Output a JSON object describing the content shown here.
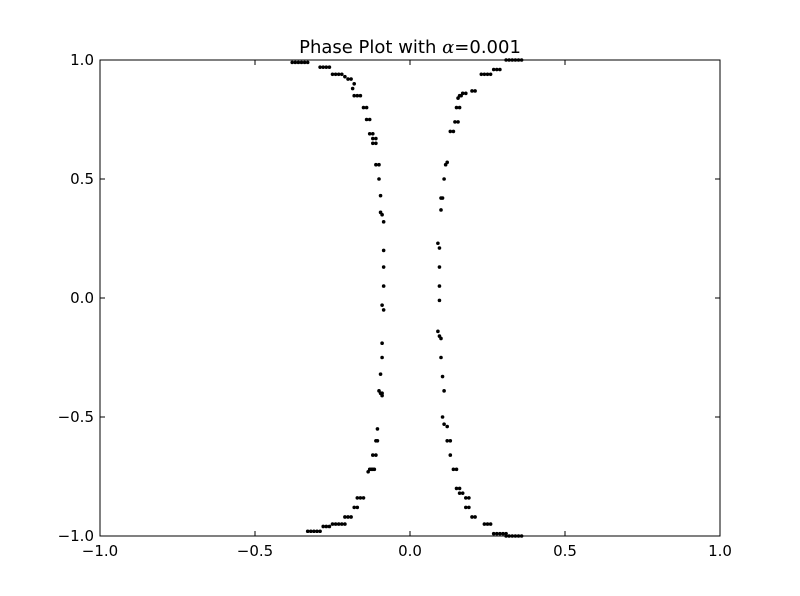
{
  "chart_data": {
    "type": "scatter",
    "title": {
      "prefix": "Phase Plot with ",
      "variable": "α",
      "suffix": "=0.001"
    },
    "xlabel": "",
    "ylabel": "",
    "xlim": [
      -1.0,
      1.0
    ],
    "ylim": [
      -1.0,
      1.0
    ],
    "grid": false,
    "legend": "none",
    "marker_color": "#000000",
    "x_ticks": [
      {
        "value": -1.0,
        "label": "−1.0"
      },
      {
        "value": -0.5,
        "label": "−0.5"
      },
      {
        "value": 0.0,
        "label": "0.0"
      },
      {
        "value": 0.5,
        "label": "0.5"
      },
      {
        "value": 1.0,
        "label": "1.0"
      }
    ],
    "y_ticks": [
      {
        "value": 1.0,
        "label": "1.0"
      },
      {
        "value": 0.5,
        "label": "0.5"
      },
      {
        "value": 0.0,
        "label": "0.0"
      },
      {
        "value": -0.5,
        "label": "−0.5"
      },
      {
        "value": -1.0,
        "label": "−1.0"
      }
    ],
    "series": [
      {
        "points": [
          [
            -0.38,
            0.99
          ],
          [
            -0.37,
            0.99
          ],
          [
            -0.36,
            0.99
          ],
          [
            -0.35,
            0.99
          ],
          [
            -0.34,
            0.99
          ],
          [
            -0.33,
            0.99
          ],
          [
            -0.29,
            0.97
          ],
          [
            -0.28,
            0.97
          ],
          [
            -0.27,
            0.97
          ],
          [
            -0.26,
            0.97
          ],
          [
            -0.25,
            0.94
          ],
          [
            -0.24,
            0.94
          ],
          [
            -0.23,
            0.94
          ],
          [
            -0.22,
            0.94
          ],
          [
            -0.21,
            0.93
          ],
          [
            -0.2,
            0.92
          ],
          [
            -0.19,
            0.92
          ],
          [
            -0.18,
            0.9
          ],
          [
            -0.185,
            0.88
          ],
          [
            -0.18,
            0.85
          ],
          [
            -0.17,
            0.85
          ],
          [
            -0.16,
            0.85
          ],
          [
            -0.15,
            0.8
          ],
          [
            -0.14,
            0.8
          ],
          [
            -0.14,
            0.75
          ],
          [
            -0.13,
            0.75
          ],
          [
            -0.13,
            0.69
          ],
          [
            -0.12,
            0.69
          ],
          [
            -0.12,
            0.67
          ],
          [
            -0.11,
            0.67
          ],
          [
            -0.12,
            0.65
          ],
          [
            -0.11,
            0.65
          ],
          [
            -0.11,
            0.56
          ],
          [
            -0.1,
            0.56
          ],
          [
            -0.1,
            0.5
          ],
          [
            -0.095,
            0.43
          ],
          [
            -0.095,
            0.36
          ],
          [
            -0.09,
            0.35
          ],
          [
            -0.085,
            0.32
          ],
          [
            -0.085,
            0.2
          ],
          [
            -0.085,
            0.13
          ],
          [
            -0.085,
            0.05
          ],
          [
            -0.09,
            -0.03
          ],
          [
            -0.085,
            -0.05
          ],
          [
            -0.09,
            -0.19
          ],
          [
            -0.09,
            -0.25
          ],
          [
            -0.095,
            -0.32
          ],
          [
            -0.1,
            -0.39
          ],
          [
            -0.095,
            -0.4
          ],
          [
            -0.09,
            -0.4
          ],
          [
            -0.09,
            -0.41
          ],
          [
            -0.105,
            -0.55
          ],
          [
            -0.11,
            -0.6
          ],
          [
            -0.105,
            -0.6
          ],
          [
            -0.12,
            -0.66
          ],
          [
            -0.11,
            -0.66
          ],
          [
            -0.135,
            -0.73
          ],
          [
            -0.13,
            -0.72
          ],
          [
            -0.125,
            -0.72
          ],
          [
            -0.12,
            -0.72
          ],
          [
            -0.115,
            -0.72
          ],
          [
            -0.17,
            -0.84
          ],
          [
            -0.16,
            -0.84
          ],
          [
            -0.15,
            -0.84
          ],
          [
            -0.18,
            -0.88
          ],
          [
            -0.17,
            -0.88
          ],
          [
            -0.21,
            -0.92
          ],
          [
            -0.2,
            -0.92
          ],
          [
            -0.19,
            -0.92
          ],
          [
            -0.25,
            -0.95
          ],
          [
            -0.24,
            -0.95
          ],
          [
            -0.23,
            -0.95
          ],
          [
            -0.22,
            -0.95
          ],
          [
            -0.21,
            -0.95
          ],
          [
            -0.28,
            -0.96
          ],
          [
            -0.27,
            -0.96
          ],
          [
            -0.26,
            -0.96
          ],
          [
            -0.33,
            -0.98
          ],
          [
            -0.32,
            -0.98
          ],
          [
            -0.31,
            -0.98
          ],
          [
            -0.3,
            -0.98
          ],
          [
            -0.29,
            -0.98
          ],
          [
            0.36,
            1.0
          ],
          [
            0.35,
            1.0
          ],
          [
            0.34,
            1.0
          ],
          [
            0.33,
            1.0
          ],
          [
            0.32,
            1.0
          ],
          [
            0.31,
            1.0
          ],
          [
            0.29,
            0.96
          ],
          [
            0.28,
            0.96
          ],
          [
            0.27,
            0.96
          ],
          [
            0.26,
            0.94
          ],
          [
            0.25,
            0.94
          ],
          [
            0.24,
            0.94
          ],
          [
            0.23,
            0.94
          ],
          [
            0.21,
            0.87
          ],
          [
            0.2,
            0.87
          ],
          [
            0.18,
            0.86
          ],
          [
            0.17,
            0.86
          ],
          [
            0.165,
            0.85
          ],
          [
            0.16,
            0.85
          ],
          [
            0.155,
            0.84
          ],
          [
            0.16,
            0.8
          ],
          [
            0.15,
            0.8
          ],
          [
            0.155,
            0.74
          ],
          [
            0.145,
            0.74
          ],
          [
            0.14,
            0.7
          ],
          [
            0.13,
            0.7
          ],
          [
            0.12,
            0.57
          ],
          [
            0.115,
            0.56
          ],
          [
            0.11,
            0.5
          ],
          [
            0.105,
            0.42
          ],
          [
            0.1,
            0.42
          ],
          [
            0.1,
            0.37
          ],
          [
            0.09,
            0.23
          ],
          [
            0.095,
            0.21
          ],
          [
            0.095,
            0.13
          ],
          [
            0.095,
            0.05
          ],
          [
            0.095,
            -0.01
          ],
          [
            0.09,
            -0.14
          ],
          [
            0.095,
            -0.16
          ],
          [
            0.1,
            -0.17
          ],
          [
            0.1,
            -0.25
          ],
          [
            0.105,
            -0.33
          ],
          [
            0.11,
            -0.39
          ],
          [
            0.105,
            -0.5
          ],
          [
            0.11,
            -0.53
          ],
          [
            0.12,
            -0.54
          ],
          [
            0.12,
            -0.6
          ],
          [
            0.13,
            -0.6
          ],
          [
            0.13,
            -0.66
          ],
          [
            0.14,
            -0.72
          ],
          [
            0.15,
            -0.72
          ],
          [
            0.15,
            -0.8
          ],
          [
            0.16,
            -0.8
          ],
          [
            0.16,
            -0.82
          ],
          [
            0.17,
            -0.82
          ],
          [
            0.18,
            -0.84
          ],
          [
            0.19,
            -0.84
          ],
          [
            0.18,
            -0.88
          ],
          [
            0.19,
            -0.88
          ],
          [
            0.2,
            -0.92
          ],
          [
            0.21,
            -0.92
          ],
          [
            0.24,
            -0.95
          ],
          [
            0.25,
            -0.95
          ],
          [
            0.26,
            -0.95
          ],
          [
            0.27,
            -0.99
          ],
          [
            0.28,
            -0.99
          ],
          [
            0.29,
            -0.99
          ],
          [
            0.3,
            -0.99
          ],
          [
            0.31,
            -0.99
          ],
          [
            0.31,
            -1.0
          ],
          [
            0.32,
            -1.0
          ],
          [
            0.33,
            -1.0
          ],
          [
            0.34,
            -1.0
          ],
          [
            0.35,
            -1.0
          ],
          [
            0.36,
            -1.0
          ]
        ]
      }
    ]
  }
}
